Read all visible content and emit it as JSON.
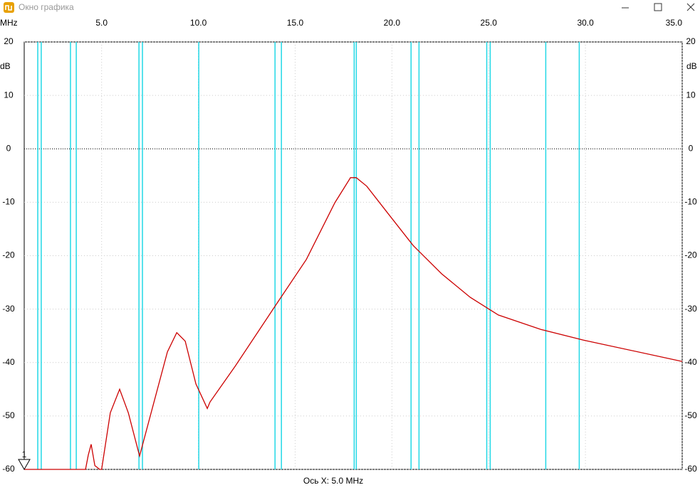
{
  "window": {
    "title": "Окно графика"
  },
  "chart_data": {
    "type": "line",
    "x_label": "MHz",
    "y_label": "dB",
    "footer": "Ось X: 5.0 MHz",
    "marker_label": "1",
    "xlim": [
      1,
      35
    ],
    "ylim": [
      -60,
      20
    ],
    "xticks": [
      {
        "value": 5,
        "label": "5.0"
      },
      {
        "value": 10,
        "label": "10.0"
      },
      {
        "value": 15,
        "label": "15.0"
      },
      {
        "value": 20,
        "label": "20.0"
      },
      {
        "value": 25,
        "label": "25.0"
      },
      {
        "value": 30,
        "label": "30.0"
      },
      {
        "value": 35,
        "label": "35.0"
      }
    ],
    "yticks": [
      -60,
      -50,
      -40,
      -30,
      -20,
      -10,
      0,
      10,
      20
    ],
    "grid": true,
    "zero_line": true,
    "markers": {
      "color": "#22d8e6",
      "x": [
        1.7,
        1.88,
        3.39,
        3.69,
        6.93,
        7.11,
        10.02,
        13.96,
        14.29,
        18.05,
        18.16,
        20.99,
        21.4,
        24.9,
        25.08,
        27.95,
        29.68
      ]
    },
    "series": [
      {
        "color": "#cc0000",
        "x": [
          1,
          4.17,
          4.31,
          4.46,
          4.65,
          4.9,
          5.0,
          5.45,
          5.93,
          6.38,
          6.96,
          7.66,
          8.4,
          8.88,
          9.32,
          9.87,
          10.46,
          10.6,
          11.9,
          14.1,
          15.58,
          17.05,
          17.86,
          18.16,
          18.7,
          19.8,
          21.1,
          22.57,
          24.05,
          25.5,
          27.7,
          29.9,
          35
        ],
        "values": [
          -60,
          -60,
          -57.3,
          -55.3,
          -59.3,
          -60,
          -60,
          -49.4,
          -45.0,
          -49.4,
          -57.5,
          -48,
          -38,
          -34.4,
          -36,
          -44,
          -48.6,
          -47.4,
          -40.7,
          -28.7,
          -20.7,
          -10.1,
          -5.4,
          -5.4,
          -7.0,
          -12.1,
          -18.1,
          -23.4,
          -27.8,
          -31.1,
          -33.8,
          -35.8,
          -39.8
        ]
      }
    ]
  }
}
